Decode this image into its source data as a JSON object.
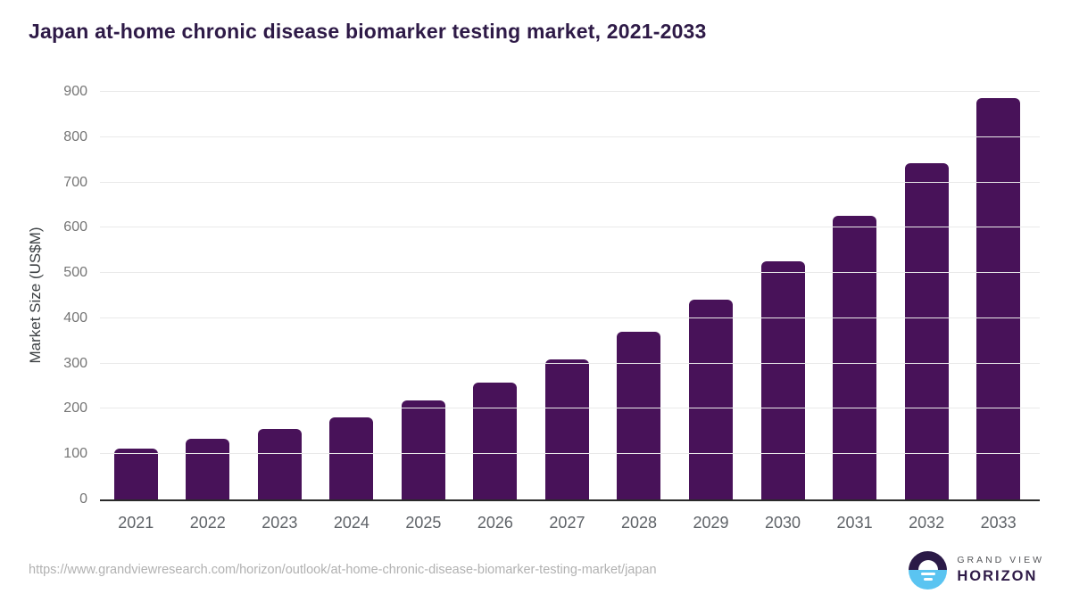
{
  "chart": {
    "title": "Japan at-home chronic disease biomarker testing market, 2021-2033",
    "ylabel": "Market Size (US$M)"
  },
  "chart_data": {
    "type": "bar",
    "title": "Japan at-home chronic disease biomarker testing market, 2021-2033",
    "xlabel": "",
    "ylabel": "Market Size (US$M)",
    "categories": [
      "2021",
      "2022",
      "2023",
      "2024",
      "2025",
      "2026",
      "2027",
      "2028",
      "2029",
      "2030",
      "2031",
      "2032",
      "2033"
    ],
    "values": [
      112,
      133,
      156,
      182,
      218,
      258,
      310,
      370,
      441,
      525,
      626,
      743,
      886
    ],
    "ylim": [
      0,
      900
    ],
    "ytick_step": 100,
    "grid": "horizontal",
    "legend": "none",
    "bar_color": "#481259"
  },
  "colors": {
    "title_text": "#2e1a47",
    "bar": "#481259",
    "gridline": "#e9e9e9",
    "axis_line": "#2a2a2a",
    "tick_text": "#757575",
    "logo_dark": "#2b1a47",
    "logo_blue": "#5ac4f1"
  },
  "footer": {
    "source_url": "https://www.grandviewresearch.com/horizon/outlook/at-home-chronic-disease-biomarker-testing-market/japan",
    "logo": {
      "top_text": "GRAND VIEW",
      "bottom_text": "HORIZON"
    }
  }
}
